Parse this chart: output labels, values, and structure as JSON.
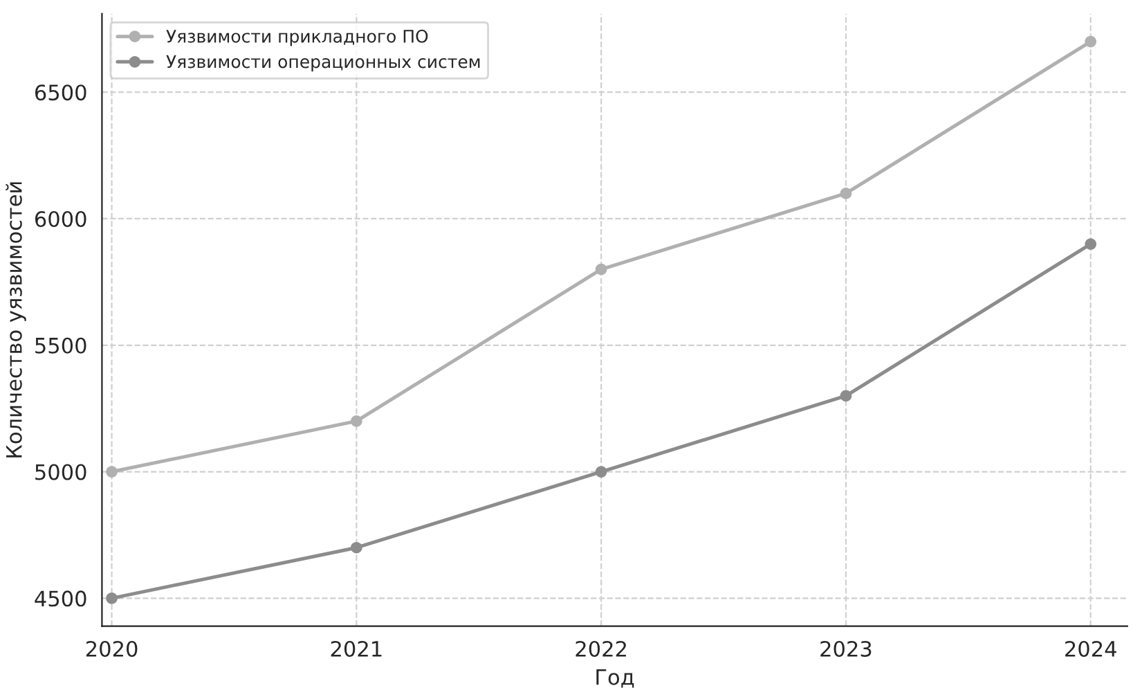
{
  "chart_data": {
    "type": "line",
    "xlabel": "Год",
    "ylabel": "Количество уязвимостей",
    "x": [
      2020,
      2021,
      2022,
      2023,
      2024
    ],
    "series": [
      {
        "name": "Уязвимости прикладного ПО",
        "color": "#b0b0b0",
        "values": [
          5000,
          5200,
          5800,
          6100,
          6700
        ]
      },
      {
        "name": "Уязвимости операционных систем",
        "color": "#8c8c8c",
        "values": [
          4500,
          4700,
          5000,
          5300,
          5900
        ]
      }
    ],
    "xlim": [
      2019.96,
      2024.15
    ],
    "xticks": [
      2020,
      2021,
      2022,
      2023,
      2024
    ],
    "ylim": [
      4390,
      6810
    ],
    "yticks": [
      4500,
      5000,
      5500,
      6000,
      6500
    ],
    "grid": true,
    "legend": "top left",
    "marker": "circle",
    "line_style": "solid"
  }
}
